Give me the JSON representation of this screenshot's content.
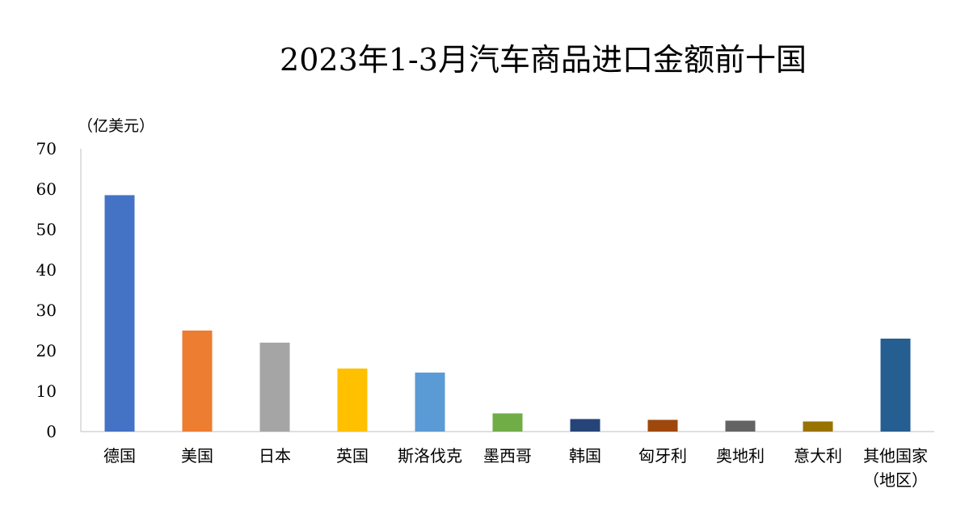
{
  "chart_data": {
    "type": "bar",
    "title": "2023年1-3月汽车商品进口金额前十国",
    "ylabel": "（亿美元）",
    "xlabel": "",
    "ylim": [
      0,
      70
    ],
    "yticks": [
      0,
      10,
      20,
      30,
      40,
      50,
      60,
      70
    ],
    "grid": false,
    "legend": "none",
    "categories": [
      "德国",
      "美国",
      "日本",
      "英国",
      "斯洛伐克",
      "墨西哥",
      "韩国",
      "匈牙利",
      "奥地利",
      "意大利",
      "其他国家（地区）"
    ],
    "category_lines": [
      [
        "德国"
      ],
      [
        "美国"
      ],
      [
        "日本"
      ],
      [
        "英国"
      ],
      [
        "斯洛伐克"
      ],
      [
        "墨西哥"
      ],
      [
        "韩国"
      ],
      [
        "匈牙利"
      ],
      [
        "奥地利"
      ],
      [
        "意大利"
      ],
      [
        "其他国家",
        "（地区）"
      ]
    ],
    "values": [
      58.5,
      25.0,
      22.0,
      15.6,
      14.6,
      4.5,
      3.1,
      2.9,
      2.7,
      2.5,
      23.0
    ],
    "colors": [
      "#4472c4",
      "#ed7d31",
      "#a5a5a5",
      "#ffc000",
      "#5b9bd5",
      "#70ad47",
      "#264478",
      "#9e480e",
      "#636363",
      "#997300",
      "#255e91"
    ]
  }
}
